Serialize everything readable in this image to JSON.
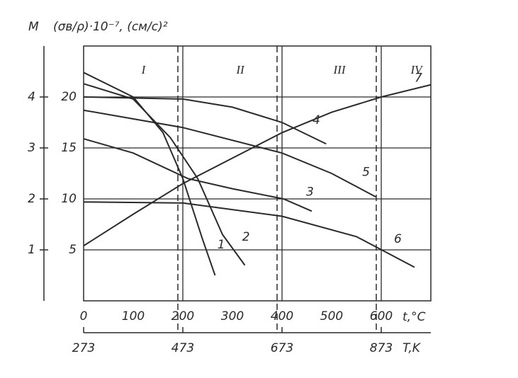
{
  "chart_data": {
    "type": "line",
    "ylabel": "(σв/ρ)·10⁻⁷, (см/с)²",
    "y2label": "M",
    "xlabel": "t,°C",
    "x2label": "T,K",
    "xlim": [
      0,
      700
    ],
    "ylim": [
      0,
      25
    ],
    "y2lim": [
      0,
      5
    ],
    "xticks": [
      0,
      100,
      200,
      300,
      400,
      500,
      600
    ],
    "x2ticks": [
      {
        "value": 0,
        "label": "273"
      },
      {
        "value": 200,
        "label": "473"
      },
      {
        "value": 400,
        "label": "673"
      },
      {
        "value": 600,
        "label": "873"
      }
    ],
    "yticks": [
      5,
      10,
      15,
      20
    ],
    "y2ticks": [
      1,
      2,
      3,
      4
    ],
    "xgrid": [
      200,
      400,
      600
    ],
    "grid": true,
    "region_labels": [
      "I",
      "II",
      "III",
      "IV"
    ],
    "region_bounds": [
      190,
      390,
      590
    ],
    "color": "#2a2a2a",
    "series": [
      {
        "name": "1",
        "x": [
          0,
          100,
          160,
          200,
          240,
          265
        ],
        "values": [
          22.4,
          20,
          16.5,
          12,
          6,
          2.5
        ]
      },
      {
        "name": "2",
        "x": [
          0,
          100,
          175,
          230,
          280,
          325
        ],
        "values": [
          21.3,
          19.8,
          16,
          12,
          6.5,
          3.5
        ]
      },
      {
        "name": "3",
        "x": [
          0,
          100,
          210,
          300,
          403,
          460
        ],
        "values": [
          15.9,
          14.5,
          12,
          11,
          10,
          8.8
        ]
      },
      {
        "name": "4",
        "x": [
          0,
          200,
          300,
          400,
          489
        ],
        "values": [
          20,
          19.8,
          19,
          17.5,
          15.4
        ]
      },
      {
        "name": "5",
        "x": [
          0,
          200,
          400,
          500,
          589
        ],
        "values": [
          18.7,
          17,
          14.5,
          12.5,
          10.2
        ]
      },
      {
        "name": "6",
        "x": [
          0,
          200,
          400,
          550,
          667
        ],
        "values": [
          9.7,
          9.6,
          8.3,
          6.3,
          3.3
        ]
      },
      {
        "name": "7",
        "x": [
          0,
          100,
          200,
          300,
          400,
          500,
          600,
          700
        ],
        "values": [
          5.4,
          8.5,
          11.5,
          14,
          16.5,
          18.5,
          20,
          21.2
        ]
      }
    ]
  }
}
